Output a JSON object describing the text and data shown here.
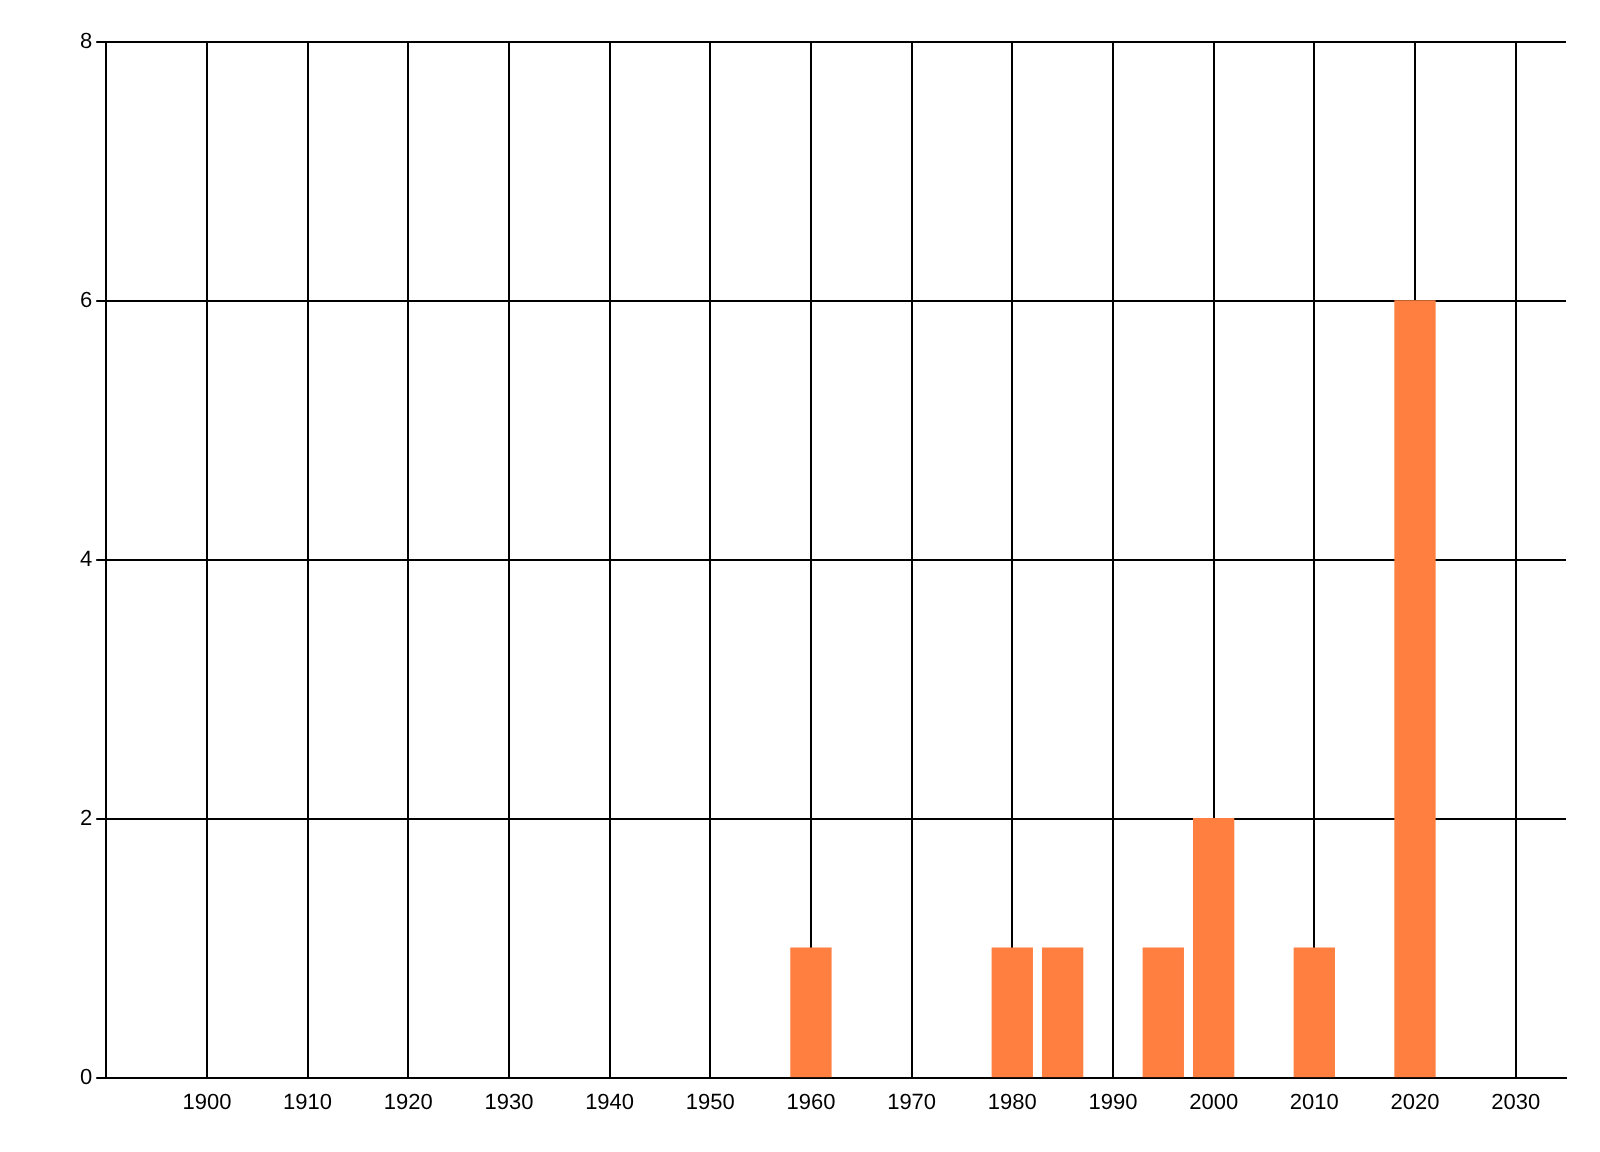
{
  "chart_data": {
    "type": "bar",
    "x": [
      1960,
      1980,
      1985,
      1995,
      2000,
      2010,
      2020
    ],
    "values": [
      1,
      1,
      1,
      1,
      2,
      1,
      6
    ],
    "color": "#ff7f40",
    "xlim": [
      1890,
      2035
    ],
    "xticks": [
      1900,
      1910,
      1920,
      1930,
      1940,
      1950,
      1960,
      1970,
      1980,
      1990,
      2000,
      2010,
      2020,
      2030
    ],
    "ylim": [
      0,
      8
    ],
    "yticks": [
      0,
      2,
      4,
      6,
      8
    ],
    "grid": true
  }
}
